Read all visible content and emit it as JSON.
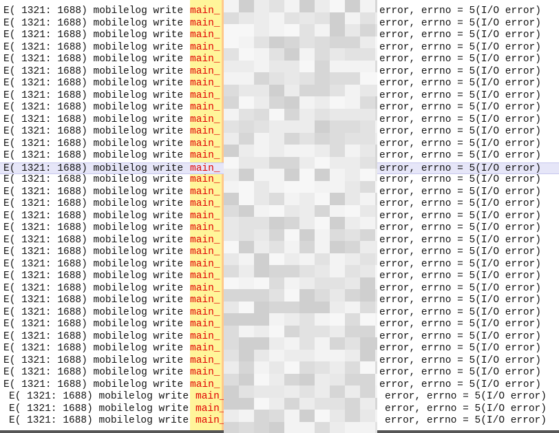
{
  "log": {
    "selected_line": 13,
    "lines": [
      {
        "source": "E( 1321: 1688) mobilelog write",
        "tag": "main_",
        "message": "error, errno = 5(I/O error)"
      },
      {
        "source": "E( 1321: 1688) mobilelog write",
        "tag": "main_",
        "message": "error, errno = 5(I/O error)"
      },
      {
        "source": "E( 1321: 1688) mobilelog write",
        "tag": "main_",
        "message": "error, errno = 5(I/O error)"
      },
      {
        "source": "E( 1321: 1688) mobilelog write",
        "tag": "main_",
        "message": "error, errno = 5(I/O error)"
      },
      {
        "source": "E( 1321: 1688) mobilelog write",
        "tag": "main_",
        "message": "error, errno = 5(I/O error)"
      },
      {
        "source": "E( 1321: 1688) mobilelog write",
        "tag": "main_",
        "message": "error, errno = 5(I/O error)"
      },
      {
        "source": "E( 1321: 1688) mobilelog write",
        "tag": "main_",
        "message": "error, errno = 5(I/O error)"
      },
      {
        "source": "E( 1321: 1688) mobilelog write",
        "tag": "main_",
        "message": "error, errno = 5(I/O error)"
      },
      {
        "source": "E( 1321: 1688) mobilelog write",
        "tag": "main_",
        "message": "error, errno = 5(I/O error)"
      },
      {
        "source": "E( 1321: 1688) mobilelog write",
        "tag": "main_",
        "message": "error, errno = 5(I/O error)"
      },
      {
        "source": "E( 1321: 1688) mobilelog write",
        "tag": "main_",
        "message": "error, errno = 5(I/O error)"
      },
      {
        "source": "E( 1321: 1688) mobilelog write",
        "tag": "main_",
        "message": "error, errno = 5(I/O error)"
      },
      {
        "source": "E( 1321: 1688) mobilelog write",
        "tag": "main_",
        "message": "error, errno = 5(I/O error)"
      },
      {
        "source": "E( 1321: 1688) mobilelog write",
        "tag": "main_",
        "message": "error, errno = 5(I/O error)"
      },
      {
        "source": "E( 1321: 1688) mobilelog write",
        "tag": "main_",
        "message": "error, errno = 5(I/O error)"
      },
      {
        "source": "E( 1321: 1688) mobilelog write",
        "tag": "main_",
        "message": "error, errno = 5(I/O error)"
      },
      {
        "source": "E( 1321: 1688) mobilelog write",
        "tag": "main_",
        "message": "error, errno = 5(I/O error)"
      },
      {
        "source": "E( 1321: 1688) mobilelog write",
        "tag": "main_",
        "message": "error, errno = 5(I/O error)"
      },
      {
        "source": "E( 1321: 1688) mobilelog write",
        "tag": "main_",
        "message": "error, errno = 5(I/O error)"
      },
      {
        "source": "E( 1321: 1688) mobilelog write",
        "tag": "main_",
        "message": "error, errno = 5(I/O error)"
      },
      {
        "source": "E( 1321: 1688) mobilelog write",
        "tag": "main_",
        "message": "error, errno = 5(I/O error)"
      },
      {
        "source": "E( 1321: 1688) mobilelog write",
        "tag": "main_",
        "message": "error, errno = 5(I/O error)"
      },
      {
        "source": "E( 1321: 1688) mobilelog write",
        "tag": "main_",
        "message": "error, errno = 5(I/O error)"
      },
      {
        "source": "E( 1321: 1688) mobilelog write",
        "tag": "main_",
        "message": "error, errno = 5(I/O error)"
      },
      {
        "source": "E( 1321: 1688) mobilelog write",
        "tag": "main_",
        "message": "error, errno = 5(I/O error)"
      },
      {
        "source": "E( 1321: 1688) mobilelog write",
        "tag": "main_",
        "message": "error, errno = 5(I/O error)"
      },
      {
        "source": "E( 1321: 1688) mobilelog write",
        "tag": "main_",
        "message": "error, errno = 5(I/O error)"
      },
      {
        "source": "E( 1321: 1688) mobilelog write",
        "tag": "main_",
        "message": "error, errno = 5(I/O error)"
      },
      {
        "source": "E( 1321: 1688) mobilelog write",
        "tag": "main_",
        "message": "error, errno = 5(I/O error)"
      },
      {
        "source": "E( 1321: 1688) mobilelog write",
        "tag": "main_",
        "message": "error, errno = 5(I/O error)"
      },
      {
        "source": "E( 1321: 1688) mobilelog write",
        "tag": "main_",
        "message": "error, errno = 5(I/O error)"
      },
      {
        "source": "E( 1321: 1688) mobilelog write",
        "tag": "main_",
        "message": "error, errno = 5(I/O error)"
      },
      {
        "source": "E( 1321: 1688) mobilelog write",
        "tag": "main_",
        "message": "error, errno = 5(I/O error)"
      },
      {
        "source": "E( 1321: 1688) mobilelog write",
        "tag": "main_",
        "message": "error, errno = 5(I/O error)"
      },
      {
        "source": "E( 1321: 1688) mobilelog write",
        "tag": "main_",
        "message": "error, errno = 5(I/O error)"
      }
    ]
  }
}
